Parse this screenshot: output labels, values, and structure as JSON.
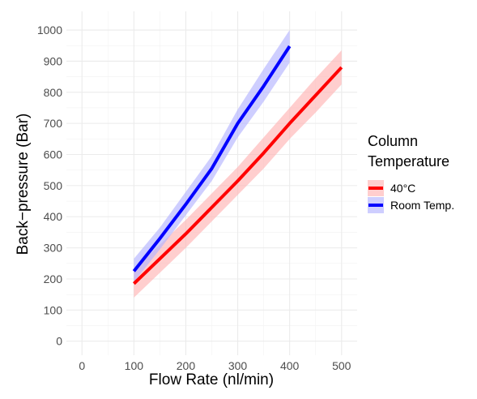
{
  "chart_data": {
    "type": "line",
    "xlabel": "Flow Rate (nl/min)",
    "ylabel": "Back−pressure (Bar)",
    "xlim": [
      -30,
      530
    ],
    "ylim": [
      -45,
      1060
    ],
    "x_ticks": [
      0,
      100,
      200,
      300,
      400,
      500
    ],
    "y_ticks": [
      0,
      100,
      200,
      300,
      400,
      500,
      600,
      700,
      800,
      900,
      1000
    ],
    "x_tick_labels": [
      "0",
      "100",
      "200",
      "300",
      "400",
      "500"
    ],
    "y_tick_labels": [
      "0",
      "100",
      "200",
      "300",
      "400",
      "500",
      "600",
      "700",
      "800",
      "900",
      "1000"
    ],
    "grid": true,
    "legend": {
      "title_line1": "Column",
      "title_line2": "Temperature",
      "placement": "right"
    },
    "series": [
      {
        "name": "40°C",
        "color": "#ff0000",
        "band_color": "#ffb3b3",
        "x": [
          100,
          150,
          200,
          250,
          300,
          350,
          400,
          450,
          500
        ],
        "y": [
          185,
          265,
          345,
          430,
          515,
          605,
          700,
          790,
          880
        ],
        "lower": [
          140,
          220,
          300,
          385,
          470,
          555,
          650,
          735,
          825
        ],
        "upper": [
          230,
          310,
          390,
          475,
          560,
          655,
          750,
          845,
          935
        ]
      },
      {
        "name": "Room Temp.",
        "color": "#0000ff",
        "band_color": "#b3b3ff",
        "x": [
          100,
          150,
          200,
          250,
          300,
          350,
          400
        ],
        "y": [
          225,
          330,
          440,
          555,
          700,
          820,
          948
        ],
        "lower": [
          190,
          295,
          405,
          515,
          655,
          770,
          895
        ],
        "upper": [
          265,
          365,
          480,
          595,
          745,
          875,
          1000
        ]
      }
    ]
  }
}
